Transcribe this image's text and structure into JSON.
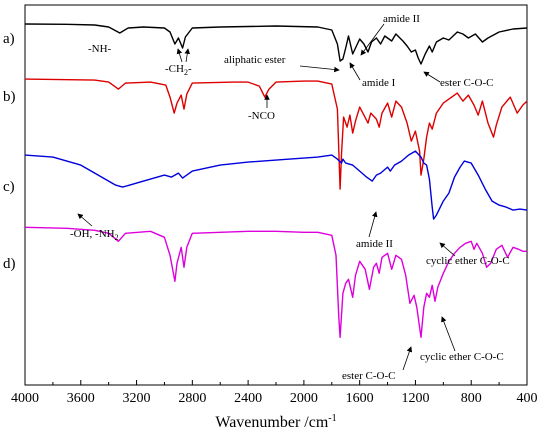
{
  "chart_data": {
    "type": "line",
    "xlabel": "Wavenumber /cm",
    "xlabel_sup": "-1",
    "xlim": [
      4000,
      400
    ],
    "x_ticks": [
      "4000",
      "3600",
      "3200",
      "2800",
      "2400",
      "2000",
      "1600",
      "1200",
      "800",
      "400"
    ],
    "series": [
      {
        "label": "a)",
        "color": "#000000",
        "baseline_frac": 0.05,
        "points": [
          [
            4000,
            0
          ],
          [
            3700,
            0.3
          ],
          [
            3500,
            1
          ],
          [
            3400,
            3
          ],
          [
            3320,
            9
          ],
          [
            3260,
            4
          ],
          [
            3150,
            3
          ],
          [
            3000,
            4
          ],
          [
            2960,
            8
          ],
          [
            2925,
            20
          ],
          [
            2900,
            14
          ],
          [
            2870,
            24
          ],
          [
            2850,
            13
          ],
          [
            2800,
            4
          ],
          [
            2600,
            3
          ],
          [
            2400,
            2.5
          ],
          [
            2200,
            2
          ],
          [
            1900,
            3
          ],
          [
            1800,
            6
          ],
          [
            1760,
            20
          ],
          [
            1740,
            37
          ],
          [
            1720,
            35
          ],
          [
            1700,
            24
          ],
          [
            1680,
            12
          ],
          [
            1650,
            30
          ],
          [
            1630,
            24
          ],
          [
            1600,
            15
          ],
          [
            1570,
            20
          ],
          [
            1540,
            28
          ],
          [
            1515,
            18
          ],
          [
            1480,
            14
          ],
          [
            1450,
            20
          ],
          [
            1420,
            12
          ],
          [
            1370,
            17
          ],
          [
            1340,
            10
          ],
          [
            1290,
            17
          ],
          [
            1260,
            22
          ],
          [
            1230,
            28
          ],
          [
            1200,
            26
          ],
          [
            1180,
            34
          ],
          [
            1160,
            40
          ],
          [
            1130,
            30
          ],
          [
            1100,
            22
          ],
          [
            1080,
            28
          ],
          [
            1050,
            18
          ],
          [
            1000,
            14
          ],
          [
            960,
            16
          ],
          [
            900,
            8
          ],
          [
            860,
            10
          ],
          [
            820,
            14
          ],
          [
            770,
            10
          ],
          [
            720,
            18
          ],
          [
            680,
            14
          ],
          [
            600,
            8
          ],
          [
            500,
            5
          ],
          [
            400,
            4
          ]
        ]
      },
      {
        "label": "b)",
        "color": "#dd0000",
        "baseline_frac": 0.195,
        "points": [
          [
            4000,
            0
          ],
          [
            3500,
            1
          ],
          [
            3400,
            3
          ],
          [
            3330,
            10
          ],
          [
            3280,
            4
          ],
          [
            3100,
            3
          ],
          [
            2990,
            6
          ],
          [
            2960,
            18
          ],
          [
            2930,
            34
          ],
          [
            2910,
            24
          ],
          [
            2880,
            16
          ],
          [
            2860,
            30
          ],
          [
            2840,
            15
          ],
          [
            2800,
            4
          ],
          [
            2500,
            3
          ],
          [
            2400,
            3
          ],
          [
            2320,
            7
          ],
          [
            2280,
            18
          ],
          [
            2250,
            10
          ],
          [
            2200,
            3
          ],
          [
            2000,
            2
          ],
          [
            1900,
            2
          ],
          [
            1800,
            5
          ],
          [
            1760,
            30
          ],
          [
            1740,
            110
          ],
          [
            1730,
            75
          ],
          [
            1715,
            38
          ],
          [
            1690,
            48
          ],
          [
            1670,
            36
          ],
          [
            1650,
            54
          ],
          [
            1630,
            42
          ],
          [
            1600,
            28
          ],
          [
            1570,
            36
          ],
          [
            1540,
            44
          ],
          [
            1520,
            34
          ],
          [
            1480,
            40
          ],
          [
            1460,
            48
          ],
          [
            1440,
            34
          ],
          [
            1400,
            24
          ],
          [
            1370,
            38
          ],
          [
            1340,
            22
          ],
          [
            1300,
            28
          ],
          [
            1260,
            44
          ],
          [
            1230,
            62
          ],
          [
            1200,
            52
          ],
          [
            1170,
            72
          ],
          [
            1160,
            96
          ],
          [
            1140,
            80
          ],
          [
            1120,
            58
          ],
          [
            1100,
            44
          ],
          [
            1080,
            50
          ],
          [
            1050,
            34
          ],
          [
            1000,
            24
          ],
          [
            960,
            20
          ],
          [
            900,
            14
          ],
          [
            860,
            22
          ],
          [
            820,
            16
          ],
          [
            780,
            26
          ],
          [
            750,
            36
          ],
          [
            720,
            22
          ],
          [
            680,
            44
          ],
          [
            640,
            58
          ],
          [
            620,
            46
          ],
          [
            580,
            28
          ],
          [
            520,
            18
          ],
          [
            470,
            34
          ],
          [
            430,
            26
          ],
          [
            400,
            22
          ]
        ]
      },
      {
        "label": "c)",
        "color": "#0000dd",
        "baseline_frac": 0.395,
        "points": [
          [
            4000,
            0
          ],
          [
            3800,
            2
          ],
          [
            3600,
            10
          ],
          [
            3450,
            22
          ],
          [
            3350,
            30
          ],
          [
            3300,
            32
          ],
          [
            3200,
            28
          ],
          [
            3000,
            20
          ],
          [
            2950,
            22
          ],
          [
            2900,
            18
          ],
          [
            2870,
            23
          ],
          [
            2800,
            16
          ],
          [
            2600,
            10
          ],
          [
            2400,
            7
          ],
          [
            2200,
            5
          ],
          [
            2000,
            3
          ],
          [
            1900,
            2
          ],
          [
            1800,
            0
          ],
          [
            1760,
            4
          ],
          [
            1730,
            8
          ],
          [
            1720,
            4
          ],
          [
            1700,
            8
          ],
          [
            1650,
            10
          ],
          [
            1600,
            16
          ],
          [
            1550,
            22
          ],
          [
            1510,
            26
          ],
          [
            1480,
            20
          ],
          [
            1450,
            18
          ],
          [
            1400,
            12
          ],
          [
            1380,
            16
          ],
          [
            1350,
            10
          ],
          [
            1300,
            6
          ],
          [
            1250,
            0
          ],
          [
            1200,
            -4
          ],
          [
            1160,
            2
          ],
          [
            1140,
            8
          ],
          [
            1120,
            10
          ],
          [
            1100,
            24
          ],
          [
            1080,
            52
          ],
          [
            1070,
            64
          ],
          [
            1050,
            60
          ],
          [
            1000,
            46
          ],
          [
            960,
            38
          ],
          [
            920,
            22
          ],
          [
            880,
            12
          ],
          [
            850,
            6
          ],
          [
            800,
            8
          ],
          [
            750,
            20
          ],
          [
            700,
            34
          ],
          [
            650,
            46
          ],
          [
            600,
            50
          ],
          [
            550,
            52
          ],
          [
            500,
            55
          ],
          [
            450,
            54
          ],
          [
            400,
            55
          ]
        ]
      },
      {
        "label": "d)",
        "color": "#dd00dd",
        "baseline_frac": 0.585,
        "points": [
          [
            4000,
            0
          ],
          [
            3700,
            1
          ],
          [
            3500,
            3
          ],
          [
            3400,
            6
          ],
          [
            3330,
            14
          ],
          [
            3280,
            6
          ],
          [
            3100,
            4
          ],
          [
            3000,
            10
          ],
          [
            2960,
            28
          ],
          [
            2925,
            54
          ],
          [
            2910,
            36
          ],
          [
            2880,
            20
          ],
          [
            2860,
            40
          ],
          [
            2840,
            20
          ],
          [
            2800,
            6
          ],
          [
            2600,
            5
          ],
          [
            2400,
            4
          ],
          [
            2200,
            4
          ],
          [
            2000,
            5
          ],
          [
            1900,
            5
          ],
          [
            1800,
            8
          ],
          [
            1770,
            28
          ],
          [
            1750,
            90
          ],
          [
            1740,
            110
          ],
          [
            1720,
            66
          ],
          [
            1700,
            56
          ],
          [
            1680,
            52
          ],
          [
            1650,
            70
          ],
          [
            1630,
            48
          ],
          [
            1600,
            34
          ],
          [
            1560,
            42
          ],
          [
            1530,
            62
          ],
          [
            1500,
            40
          ],
          [
            1480,
            36
          ],
          [
            1460,
            46
          ],
          [
            1440,
            30
          ],
          [
            1400,
            26
          ],
          [
            1370,
            42
          ],
          [
            1340,
            28
          ],
          [
            1300,
            32
          ],
          [
            1270,
            48
          ],
          [
            1240,
            76
          ],
          [
            1210,
            68
          ],
          [
            1190,
            80
          ],
          [
            1170,
            100
          ],
          [
            1160,
            110
          ],
          [
            1140,
            80
          ],
          [
            1120,
            66
          ],
          [
            1100,
            70
          ],
          [
            1080,
            58
          ],
          [
            1060,
            74
          ],
          [
            1040,
            60
          ],
          [
            1000,
            46
          ],
          [
            960,
            34
          ],
          [
            920,
            26
          ],
          [
            880,
            20
          ],
          [
            840,
            16
          ],
          [
            800,
            14
          ],
          [
            780,
            22
          ],
          [
            760,
            16
          ],
          [
            720,
            26
          ],
          [
            690,
            40
          ],
          [
            660,
            36
          ],
          [
            620,
            22
          ],
          [
            580,
            18
          ],
          [
            540,
            30
          ],
          [
            500,
            20
          ],
          [
            460,
            22
          ],
          [
            430,
            24
          ],
          [
            400,
            24
          ]
        ]
      }
    ],
    "annotations": [
      {
        "text": "-NH-"
      },
      {
        "text": "-CH",
        "sub": "2",
        "suffix": "-"
      },
      {
        "text": "amide II"
      },
      {
        "text": "aliphatic ester"
      },
      {
        "text": "amide I"
      },
      {
        "text": "ester C-O-C"
      },
      {
        "text": "-NCO"
      },
      {
        "text": "-OH, -NH",
        "sub": "2"
      },
      {
        "text": "amide II"
      },
      {
        "text": "cyclic ether C-O-C"
      },
      {
        "text": "ester C-O-C"
      },
      {
        "text": "cyclic ether C-O-C"
      }
    ]
  }
}
